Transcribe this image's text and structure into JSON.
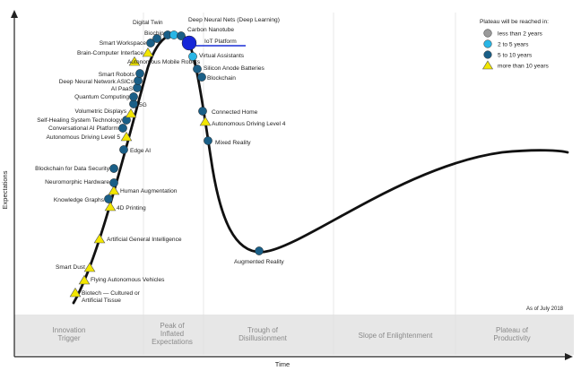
{
  "chart_data": {
    "type": "scatter",
    "title": "",
    "xlabel": "Time",
    "ylabel": "Expectations",
    "as_of": "As of July 2018",
    "phases": [
      "Innovation Trigger",
      "Peak of Inflated Expectations",
      "Trough of Disillusionment",
      "Slope of Enlightenment",
      "Plateau of Productivity"
    ],
    "legend": {
      "title": "Plateau will be reached in:",
      "items": [
        {
          "key": "lt2",
          "label": "less than 2 years",
          "color": "#9a9a9a",
          "shape": "circle"
        },
        {
          "key": "2to5",
          "label": "2 to 5 years",
          "color": "#29b6e6",
          "shape": "circle"
        },
        {
          "key": "5to10",
          "label": "5 to 10 years",
          "color": "#1a5f87",
          "shape": "circle"
        },
        {
          "key": "gt10",
          "label": "more than 10 years",
          "color": "#f2e600",
          "shape": "triangle"
        }
      ]
    },
    "points": [
      {
        "name": "Biotech — Cultured or Artificial Tissue",
        "cat": "gt10"
      },
      {
        "name": "Flying Autonomous Vehicles",
        "cat": "gt10"
      },
      {
        "name": "Smart Dust",
        "cat": "gt10"
      },
      {
        "name": "Artificial General Intelligence",
        "cat": "gt10"
      },
      {
        "name": "4D Printing",
        "cat": "gt10"
      },
      {
        "name": "Knowledge Graphs",
        "cat": "5to10"
      },
      {
        "name": "Human Augmentation",
        "cat": "gt10"
      },
      {
        "name": "Neuromorphic Hardware",
        "cat": "5to10"
      },
      {
        "name": "Blockchain for Data Security",
        "cat": "5to10"
      },
      {
        "name": "Edge AI",
        "cat": "5to10"
      },
      {
        "name": "Autonomous Driving Level 5",
        "cat": "gt10"
      },
      {
        "name": "Conversational AI Platform",
        "cat": "5to10"
      },
      {
        "name": "Self-Healing System Technology",
        "cat": "5to10"
      },
      {
        "name": "Volumetric Displays",
        "cat": "gt10"
      },
      {
        "name": "5G",
        "cat": "5to10"
      },
      {
        "name": "Quantum Computing",
        "cat": "5to10"
      },
      {
        "name": "AI PaaS",
        "cat": "5to10"
      },
      {
        "name": "Deep Neural Network ASICs",
        "cat": "5to10"
      },
      {
        "name": "Smart Robots",
        "cat": "5to10"
      },
      {
        "name": "Autonomous Mobile Robots",
        "cat": "gt10"
      },
      {
        "name": "Brain-Computer Interface",
        "cat": "gt10"
      },
      {
        "name": "Smart Workspace",
        "cat": "5to10"
      },
      {
        "name": "Biochips",
        "cat": "5to10"
      },
      {
        "name": "Digital Twin",
        "cat": "5to10"
      },
      {
        "name": "Deep Neural Nets (Deep Learning)",
        "cat": "2to5"
      },
      {
        "name": "Carbon Nanotube",
        "cat": "5to10"
      },
      {
        "name": "IoT Platform",
        "cat": "2to5",
        "highlight": true
      },
      {
        "name": "Virtual Assistants",
        "cat": "2to5"
      },
      {
        "name": "Silicon Anode Batteries",
        "cat": "5to10"
      },
      {
        "name": "Blockchain",
        "cat": "5to10"
      },
      {
        "name": "Connected Home",
        "cat": "5to10"
      },
      {
        "name": "Autonomous Driving Level 4",
        "cat": "gt10"
      },
      {
        "name": "Mixed Reality",
        "cat": "5to10"
      },
      {
        "name": "Augmented Reality",
        "cat": "5to10"
      }
    ]
  }
}
